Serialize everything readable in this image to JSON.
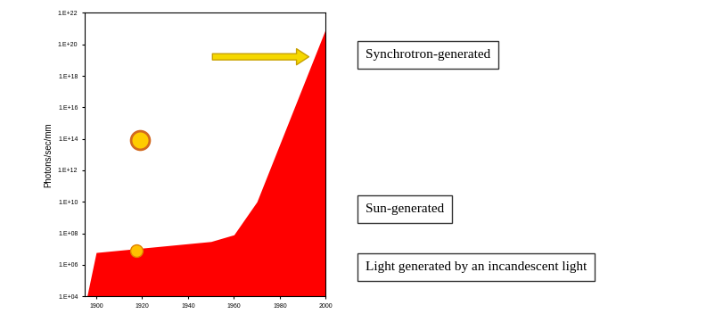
{
  "chart_data": {
    "type": "area",
    "y_label": "Photons/sec/mm",
    "x": [
      1896,
      1900,
      1950,
      1960,
      1970,
      2000
    ],
    "values": [
      10000,
      6000000,
      30000000,
      80000000,
      10000000000,
      1e+21
    ],
    "color": "#ff0000",
    "log": "y",
    "grid": false,
    "xlim": [
      1895,
      2000
    ],
    "xticks": [
      1900,
      1920,
      1940,
      1960,
      1980,
      2000
    ],
    "ylim": [
      10000,
      1e+22
    ],
    "yticks": [
      {
        "value": 10000,
        "label": "1.E+04"
      },
      {
        "value": 1000000,
        "label": "1.E+06"
      },
      {
        "value": 100000000,
        "label": "1.E+08"
      },
      {
        "value": 10000000000,
        "label": "1.E+10"
      },
      {
        "value": 1000000000000,
        "label": "1.E+12"
      },
      {
        "value": 100000000000000,
        "label": "1.E+14"
      },
      {
        "value": 10000000000000000,
        "label": "1.E+16"
      },
      {
        "value": 1000000000000000000,
        "label": "1.E+18"
      },
      {
        "value": 1e+20,
        "label": "1.E+20"
      },
      {
        "value": 1e+22,
        "label": "1.E+22"
      }
    ],
    "annotations": [
      "Synchrotron-generated",
      "Sun-generated",
      "Light generated by an incandescent light"
    ]
  }
}
